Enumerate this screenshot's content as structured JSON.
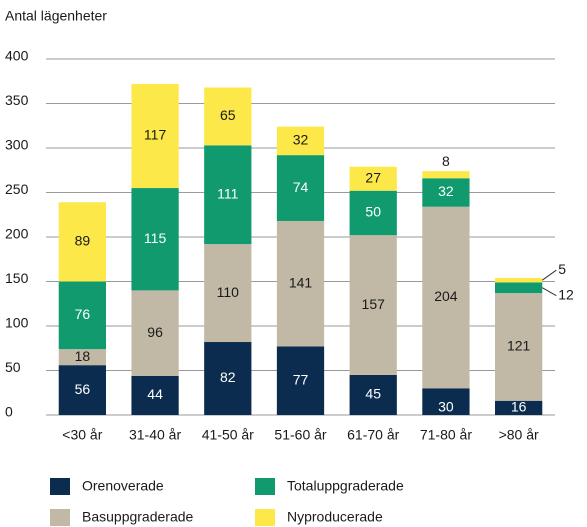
{
  "chart_data": {
    "type": "bar",
    "stacked": true,
    "y_label": "Antal lägenheter",
    "categories": [
      "<30 år",
      "31-40 år",
      "41-50 år",
      "51-60 år",
      "61-70 år",
      "71-80 år",
      ">80 år"
    ],
    "series": [
      {
        "name": "Orenoverade",
        "color": "#0b2c4f",
        "values": [
          56,
          44,
          82,
          77,
          45,
          30,
          16
        ]
      },
      {
        "name": "Basuppgraderade",
        "color": "#c1b9a5",
        "values": [
          18,
          96,
          110,
          141,
          157,
          204,
          121
        ]
      },
      {
        "name": "Totaluppgraderade",
        "color": "#109a6d",
        "values": [
          76,
          115,
          111,
          74,
          50,
          32,
          12
        ]
      },
      {
        "name": "Nyproducerade",
        "color": "#fde84a",
        "values": [
          89,
          117,
          65,
          32,
          27,
          8,
          5
        ]
      }
    ],
    "ylim": [
      0,
      400
    ],
    "yticks": [
      0,
      50,
      100,
      150,
      200,
      250,
      300,
      350,
      400
    ],
    "grid": true
  }
}
